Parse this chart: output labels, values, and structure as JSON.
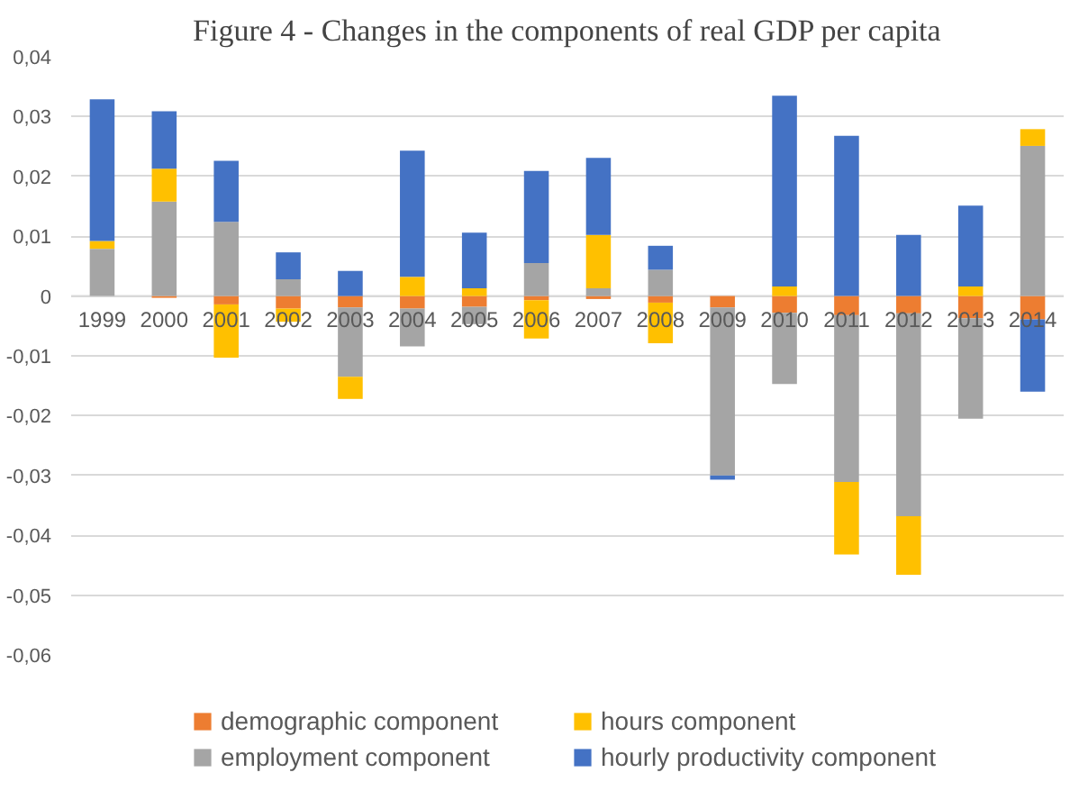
{
  "chart_data": {
    "type": "bar",
    "stacked": true,
    "title": "Figure 4 - Changes in the components of real GDP per capita",
    "categories": [
      "1999",
      "2000",
      "2001",
      "2002",
      "2003",
      "2004",
      "2005",
      "2006",
      "2007",
      "2008",
      "2009",
      "2010",
      "2011",
      "2012",
      "2013",
      "2014"
    ],
    "series": [
      {
        "name": "demographic component",
        "color": "#ed7d31",
        "values": [
          0,
          -0.0003,
          -0.0014,
          -0.0021,
          -0.0019,
          -0.0021,
          -0.0018,
          -0.0007,
          -0.0005,
          -0.0011,
          -0.0019,
          -0.0028,
          -0.0032,
          -0.0029,
          -0.0037,
          -0.0039
        ]
      },
      {
        "name": "employment component",
        "color": "#a5a5a5",
        "values": [
          0.0079,
          0.0158,
          0.0124,
          0.0028,
          -0.0116,
          -0.0063,
          -0.0029,
          0.0055,
          0.0013,
          0.0044,
          -0.0281,
          -0.0119,
          -0.0279,
          -0.0339,
          -0.0168,
          0.0251
        ]
      },
      {
        "name": "hours component",
        "color": "#ffc000",
        "values": [
          0.0013,
          0.0055,
          -0.0089,
          -0.0022,
          -0.0037,
          0.0032,
          0.0013,
          -0.0064,
          0.0089,
          -0.0068,
          0,
          0.0016,
          -0.0121,
          -0.0098,
          0.0016,
          0.0028
        ]
      },
      {
        "name": "hourly productivity component",
        "color": "#4472c4",
        "values": [
          0.0237,
          0.0096,
          0.0102,
          0.0045,
          0.0042,
          0.0211,
          0.0093,
          0.0154,
          0.0129,
          0.004,
          -0.0007,
          0.0319,
          0.0268,
          0.0102,
          0.0135,
          -0.0121
        ]
      }
    ],
    "ylim": [
      -0.06,
      0.04
    ],
    "yticks": [
      {
        "value": -0.06,
        "label": "-0,06"
      },
      {
        "value": -0.05,
        "label": "-0,05"
      },
      {
        "value": -0.04,
        "label": "-0,04"
      },
      {
        "value": -0.03,
        "label": "-0,03"
      },
      {
        "value": -0.02,
        "label": "-0,02"
      },
      {
        "value": -0.01,
        "label": "-0,01"
      },
      0,
      {
        "value": 0.01,
        "label": "0,01"
      },
      {
        "value": 0.02,
        "label": "0,02"
      },
      {
        "value": 0.03,
        "label": "0,03"
      },
      {
        "value": 0.04,
        "label": "0,04"
      }
    ],
    "grid": "y",
    "legend": "bottom"
  }
}
